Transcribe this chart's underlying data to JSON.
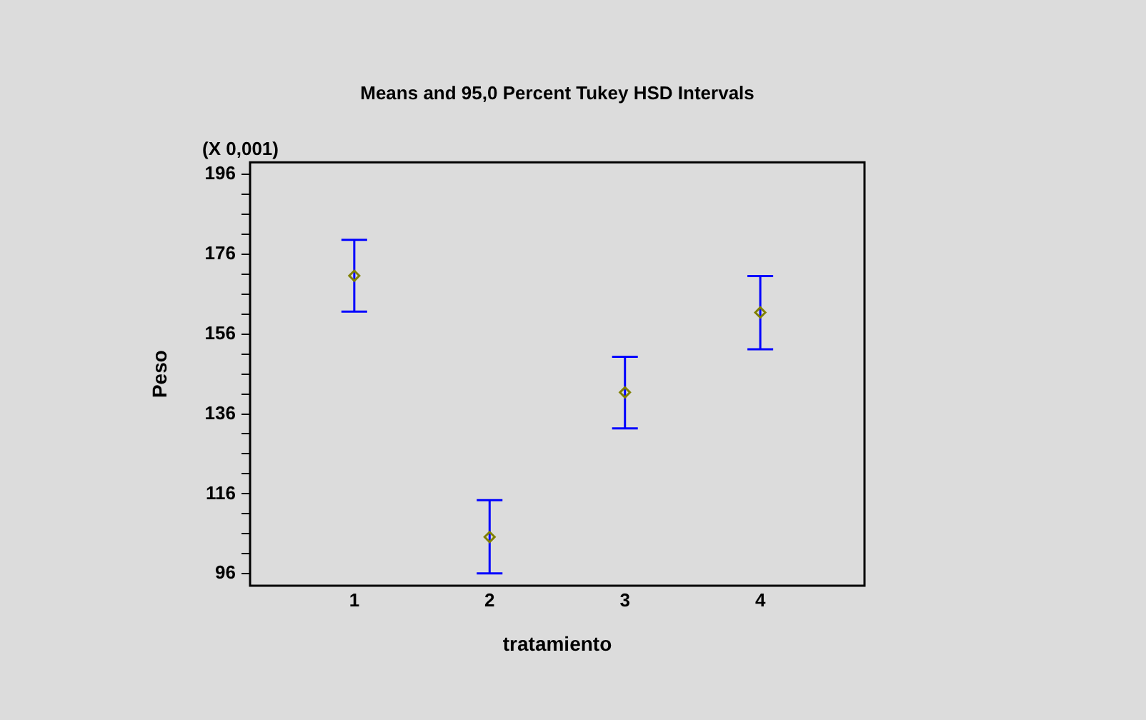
{
  "chart_data": {
    "type": "scatter",
    "title": "Means and 95,0 Percent Tukey HSD Intervals",
    "xlabel": "tratamiento",
    "ylabel": "Peso",
    "annotations": [
      "(X 0,001)"
    ],
    "categories": [
      "1",
      "2",
      "3",
      "4"
    ],
    "values": [
      170.6,
      105.2,
      141.4,
      161.4
    ],
    "errors": [
      [
        161.6,
        179.6
      ],
      [
        96.1,
        114.4
      ],
      [
        132.4,
        150.3
      ],
      [
        152.2,
        170.5
      ]
    ],
    "color": "#808000",
    "marker": "diamond",
    "grid": false,
    "legend": false,
    "ylim": [
      93,
      199
    ],
    "yticks": [
      96,
      {
        "value": 101,
        "label": null
      },
      {
        "value": 106,
        "label": null
      },
      {
        "value": 111,
        "label": null
      },
      116,
      {
        "value": 121,
        "label": null
      },
      {
        "value": 126,
        "label": null
      },
      {
        "value": 131,
        "label": null
      },
      136,
      {
        "value": 141,
        "label": null
      },
      {
        "value": 146,
        "label": null
      },
      {
        "value": 151,
        "label": null
      },
      156,
      {
        "value": 161,
        "label": null
      },
      {
        "value": 166,
        "label": null
      },
      {
        "value": 171,
        "label": null
      },
      176,
      {
        "value": 181,
        "label": null
      },
      {
        "value": 186,
        "label": null
      },
      {
        "value": 191,
        "label": null
      },
      196
    ]
  }
}
